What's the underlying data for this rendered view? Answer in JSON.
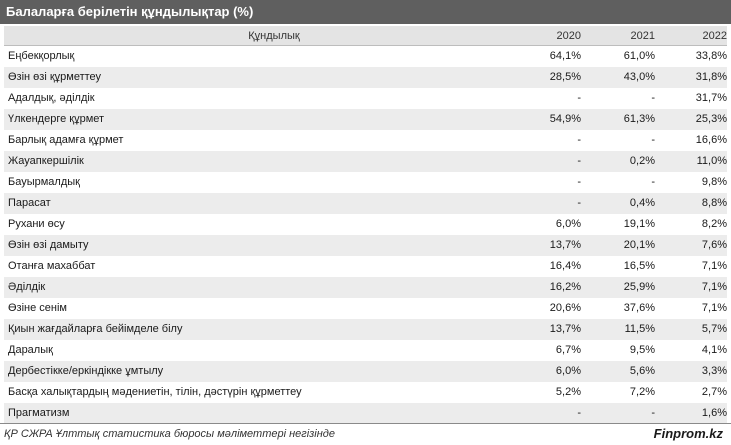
{
  "chart_data": {
    "type": "table",
    "title": "Балаларға берілетін құндылықтар (%)",
    "columns": [
      "Құндылық",
      "2020",
      "2021",
      "2022"
    ],
    "rows": [
      {
        "label": "Еңбекқорлық",
        "values": [
          "64,1%",
          "61,0%",
          "33,8%"
        ]
      },
      {
        "label": "Өзін өзі құрметтеу",
        "values": [
          "28,5%",
          "43,0%",
          "31,8%"
        ]
      },
      {
        "label": "Адалдық, әділдік",
        "values": [
          "-",
          "-",
          "31,7%"
        ]
      },
      {
        "label": "Үлкендерге құрмет",
        "values": [
          "54,9%",
          "61,3%",
          "25,3%"
        ]
      },
      {
        "label": "Барлық адамға құрмет",
        "values": [
          "-",
          "-",
          "16,6%"
        ]
      },
      {
        "label": "Жауапкершілік",
        "values": [
          "-",
          "0,2%",
          "11,0%"
        ]
      },
      {
        "label": "Бауырмалдық",
        "values": [
          "-",
          "-",
          "9,8%"
        ]
      },
      {
        "label": "Парасат",
        "values": [
          "-",
          "0,4%",
          "8,8%"
        ]
      },
      {
        "label": "Рухани өсу",
        "values": [
          "6,0%",
          "19,1%",
          "8,2%"
        ]
      },
      {
        "label": "Өзін өзі дамыту",
        "values": [
          "13,7%",
          "20,1%",
          "7,6%"
        ]
      },
      {
        "label": "Отанға махаббат",
        "values": [
          "16,4%",
          "16,5%",
          "7,1%"
        ]
      },
      {
        "label": "Әділдік",
        "values": [
          "16,2%",
          "25,9%",
          "7,1%"
        ]
      },
      {
        "label": "Өзіне сенім",
        "values": [
          "20,6%",
          "37,6%",
          "7,1%"
        ]
      },
      {
        "label": "Қиын жағдайларға бейімделе білу",
        "values": [
          "13,7%",
          "11,5%",
          "5,7%"
        ]
      },
      {
        "label": "Даралық",
        "values": [
          "6,7%",
          "9,5%",
          "4,1%"
        ]
      },
      {
        "label": "Дербестікке/еркіндікке ұмтылу",
        "values": [
          "6,0%",
          "5,6%",
          "3,3%"
        ]
      },
      {
        "label": "Басқа халықтардың мәдениетін, тілін, дәстүрін құрметтеу",
        "values": [
          "5,2%",
          "7,2%",
          "2,7%"
        ]
      },
      {
        "label": "Прагматизм",
        "values": [
          "-",
          "-",
          "1,6%"
        ]
      }
    ]
  },
  "footer": {
    "source": "ҚР СЖРА Ұлттық статистика бюросы мәліметтері негізінде",
    "brand": "Finprom.kz"
  },
  "colors": {
    "title_bg": "#5f5f5f",
    "header_bg": "#e4e4e4",
    "alt_row_bg": "#ececec"
  }
}
